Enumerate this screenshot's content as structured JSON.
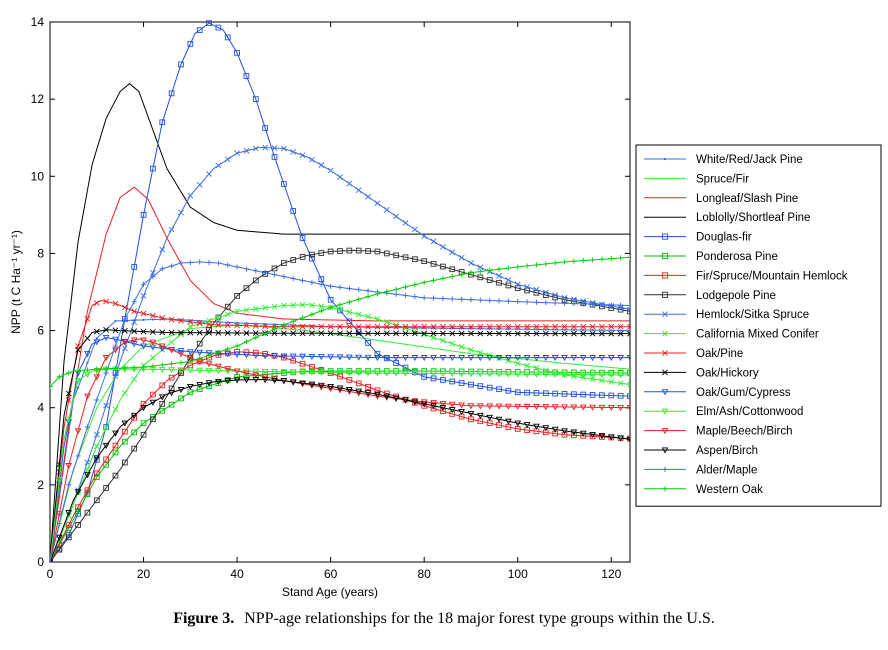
{
  "chart_data": {
    "type": "line",
    "xlabel": "Stand Age (years)",
    "ylabel": "NPP (t C Ha⁻¹ yr⁻¹)",
    "xlim": [
      0,
      124
    ],
    "ylim": [
      0,
      14
    ],
    "xticks": [
      "0",
      "20",
      "40",
      "60",
      "80",
      "100",
      "120"
    ],
    "yticks": [
      "0",
      "2",
      "4",
      "6",
      "8",
      "10",
      "12",
      "14"
    ],
    "grid": false,
    "legend_position": "right",
    "series": [
      {
        "name": "White/Red/Jack Pine",
        "color": "#3a6fe0",
        "marker": "dot",
        "points": [
          [
            0,
            0
          ],
          [
            5,
            4.2
          ],
          [
            10,
            5.8
          ],
          [
            14,
            6.25
          ],
          [
            25,
            6.3
          ],
          [
            40,
            6.2
          ],
          [
            60,
            6.1
          ],
          [
            90,
            6.05
          ],
          [
            124,
            6.0
          ]
        ]
      },
      {
        "name": "Spruce/Fir",
        "color": "#33ee33",
        "marker": "none",
        "points": [
          [
            0,
            0
          ],
          [
            5,
            2.4
          ],
          [
            10,
            4.0
          ],
          [
            15,
            5.0
          ],
          [
            20,
            5.6
          ],
          [
            30,
            6.05
          ],
          [
            40,
            6.15
          ],
          [
            55,
            6.0
          ],
          [
            70,
            5.75
          ],
          [
            90,
            5.4
          ],
          [
            110,
            5.15
          ],
          [
            124,
            5.0
          ]
        ]
      },
      {
        "name": "Longleaf/Slash Pine",
        "color": "#e82020",
        "marker": "none",
        "points": [
          [
            0,
            0
          ],
          [
            4,
            3.5
          ],
          [
            8,
            6.5
          ],
          [
            12,
            8.5
          ],
          [
            15,
            9.45
          ],
          [
            18,
            9.72
          ],
          [
            21,
            9.4
          ],
          [
            25,
            8.4
          ],
          [
            30,
            7.3
          ],
          [
            35,
            6.7
          ],
          [
            40,
            6.45
          ],
          [
            50,
            6.3
          ],
          [
            70,
            6.25
          ],
          [
            124,
            6.25
          ]
        ]
      },
      {
        "name": "Loblolly/Shortleaf Pine",
        "color": "#000000",
        "marker": "none",
        "points": [
          [
            0,
            0
          ],
          [
            3,
            5.2
          ],
          [
            6,
            8.3
          ],
          [
            9,
            10.3
          ],
          [
            12,
            11.5
          ],
          [
            15,
            12.2
          ],
          [
            17,
            12.4
          ],
          [
            19,
            12.2
          ],
          [
            22,
            11.2
          ],
          [
            25,
            10.2
          ],
          [
            30,
            9.2
          ],
          [
            35,
            8.8
          ],
          [
            40,
            8.6
          ],
          [
            50,
            8.5
          ],
          [
            124,
            8.5
          ]
        ]
      },
      {
        "name": "Douglas-fir",
        "color": "#1e50e0",
        "marker": "square",
        "points": [
          [
            0,
            0
          ],
          [
            4,
            0.7
          ],
          [
            8,
            1.8
          ],
          [
            12,
            3.5
          ],
          [
            16,
            6.3
          ],
          [
            20,
            9.0
          ],
          [
            24,
            11.4
          ],
          [
            28,
            12.9
          ],
          [
            31,
            13.7
          ],
          [
            34,
            13.97
          ],
          [
            37,
            13.8
          ],
          [
            40,
            13.2
          ],
          [
            44,
            12.0
          ],
          [
            48,
            10.5
          ],
          [
            54,
            8.4
          ],
          [
            60,
            6.8
          ],
          [
            70,
            5.4
          ],
          [
            80,
            4.8
          ],
          [
            100,
            4.4
          ],
          [
            124,
            4.3
          ]
        ]
      },
      {
        "name": "Ponderosa Pine",
        "color": "#00c000",
        "marker": "square",
        "points": [
          [
            0,
            0
          ],
          [
            5,
            1.1
          ],
          [
            10,
            2.2
          ],
          [
            15,
            3.0
          ],
          [
            20,
            3.6
          ],
          [
            30,
            4.4
          ],
          [
            40,
            4.8
          ],
          [
            55,
            4.95
          ],
          [
            80,
            4.95
          ],
          [
            124,
            4.9
          ]
        ]
      },
      {
        "name": "Fir/Spruce/Mountain Hemlock",
        "color": "#e82020",
        "marker": "square",
        "points": [
          [
            0,
            0
          ],
          [
            5,
            1.2
          ],
          [
            10,
            2.3
          ],
          [
            15,
            3.2
          ],
          [
            20,
            4.1
          ],
          [
            25,
            4.7
          ],
          [
            30,
            5.1
          ],
          [
            35,
            5.35
          ],
          [
            40,
            5.45
          ],
          [
            45,
            5.42
          ],
          [
            50,
            5.3
          ],
          [
            60,
            4.9
          ],
          [
            70,
            4.45
          ],
          [
            80,
            4.05
          ],
          [
            90,
            3.7
          ],
          [
            100,
            3.45
          ],
          [
            110,
            3.3
          ],
          [
            124,
            3.2
          ]
        ]
      },
      {
        "name": "Lodgepole Pine",
        "color": "#303030",
        "marker": "square",
        "points": [
          [
            0,
            0
          ],
          [
            5,
            0.8
          ],
          [
            10,
            1.6
          ],
          [
            15,
            2.4
          ],
          [
            20,
            3.3
          ],
          [
            25,
            4.3
          ],
          [
            30,
            5.3
          ],
          [
            35,
            6.2
          ],
          [
            40,
            6.9
          ],
          [
            45,
            7.4
          ],
          [
            50,
            7.75
          ],
          [
            55,
            7.95
          ],
          [
            60,
            8.05
          ],
          [
            65,
            8.08
          ],
          [
            70,
            8.05
          ],
          [
            80,
            7.8
          ],
          [
            90,
            7.45
          ],
          [
            100,
            7.1
          ],
          [
            110,
            6.8
          ],
          [
            124,
            6.5
          ]
        ]
      },
      {
        "name": "Hemlock/Sitka Spruce",
        "color": "#3a6fe0",
        "marker": "x",
        "points": [
          [
            0,
            0
          ],
          [
            5,
            1.5
          ],
          [
            10,
            3.3
          ],
          [
            15,
            5.2
          ],
          [
            20,
            6.9
          ],
          [
            25,
            8.4
          ],
          [
            30,
            9.5
          ],
          [
            35,
            10.2
          ],
          [
            40,
            10.6
          ],
          [
            45,
            10.75
          ],
          [
            50,
            10.72
          ],
          [
            55,
            10.5
          ],
          [
            60,
            10.15
          ],
          [
            70,
            9.3
          ],
          [
            80,
            8.45
          ],
          [
            90,
            7.75
          ],
          [
            100,
            7.2
          ],
          [
            110,
            6.85
          ],
          [
            124,
            6.55
          ]
        ]
      },
      {
        "name": "California Mixed Conifer",
        "color": "#33ee33",
        "marker": "x",
        "points": [
          [
            0,
            0
          ],
          [
            5,
            1.5
          ],
          [
            10,
            3.0
          ],
          [
            15,
            4.2
          ],
          [
            20,
            5.1
          ],
          [
            30,
            6.1
          ],
          [
            40,
            6.5
          ],
          [
            50,
            6.65
          ],
          [
            55,
            6.67
          ],
          [
            60,
            6.6
          ],
          [
            70,
            6.3
          ],
          [
            80,
            5.9
          ],
          [
            90,
            5.5
          ],
          [
            100,
            5.15
          ],
          [
            110,
            4.85
          ],
          [
            124,
            4.6
          ]
        ]
      },
      {
        "name": "Oak/Pine",
        "color": "#e82020",
        "marker": "x",
        "points": [
          [
            0,
            0
          ],
          [
            3,
            3.5
          ],
          [
            6,
            5.6
          ],
          [
            9,
            6.65
          ],
          [
            11,
            6.78
          ],
          [
            14,
            6.7
          ],
          [
            18,
            6.5
          ],
          [
            25,
            6.3
          ],
          [
            35,
            6.15
          ],
          [
            50,
            6.1
          ],
          [
            124,
            6.1
          ]
        ]
      },
      {
        "name": "Oak/Hickory",
        "color": "#000000",
        "marker": "x",
        "points": [
          [
            0,
            0
          ],
          [
            3,
            3.8
          ],
          [
            6,
            5.5
          ],
          [
            9,
            5.95
          ],
          [
            12,
            6.02
          ],
          [
            15,
            6.0
          ],
          [
            25,
            5.95
          ],
          [
            50,
            5.93
          ],
          [
            124,
            5.92
          ]
        ]
      },
      {
        "name": "Oak/Gum/Cypress",
        "color": "#1e50e0",
        "marker": "tri-down",
        "points": [
          [
            0,
            0
          ],
          [
            3,
            3.0
          ],
          [
            6,
            4.9
          ],
          [
            9,
            5.65
          ],
          [
            12,
            5.82
          ],
          [
            15,
            5.75
          ],
          [
            20,
            5.6
          ],
          [
            30,
            5.45
          ],
          [
            45,
            5.35
          ],
          [
            70,
            5.3
          ],
          [
            124,
            5.3
          ]
        ]
      },
      {
        "name": "Elm/Ash/Cottonwood",
        "color": "#33ee33",
        "marker": "tri-down",
        "points": [
          [
            0,
            0
          ],
          [
            3,
            3.2
          ],
          [
            6,
            4.7
          ],
          [
            9,
            4.95
          ],
          [
            12,
            5.0
          ],
          [
            20,
            5.0
          ],
          [
            40,
            4.95
          ],
          [
            70,
            4.9
          ],
          [
            124,
            4.85
          ]
        ]
      },
      {
        "name": "Maple/Beech/Birch",
        "color": "#e82020",
        "marker": "tri-down",
        "points": [
          [
            0,
            0
          ],
          [
            4,
            2.5
          ],
          [
            8,
            4.3
          ],
          [
            12,
            5.3
          ],
          [
            16,
            5.7
          ],
          [
            19,
            5.78
          ],
          [
            22,
            5.7
          ],
          [
            27,
            5.45
          ],
          [
            32,
            5.2
          ],
          [
            40,
            4.95
          ],
          [
            50,
            4.7
          ],
          [
            60,
            4.5
          ],
          [
            70,
            4.3
          ],
          [
            80,
            4.15
          ],
          [
            90,
            4.05
          ],
          [
            124,
            4.0
          ]
        ]
      },
      {
        "name": "Aspen/Birch",
        "color": "#000000",
        "marker": "tri-down",
        "points": [
          [
            0,
            0
          ],
          [
            5,
            1.6
          ],
          [
            10,
            2.7
          ],
          [
            15,
            3.5
          ],
          [
            20,
            4.0
          ],
          [
            25,
            4.35
          ],
          [
            30,
            4.55
          ],
          [
            35,
            4.67
          ],
          [
            40,
            4.72
          ],
          [
            45,
            4.73
          ],
          [
            50,
            4.7
          ],
          [
            60,
            4.55
          ],
          [
            70,
            4.35
          ],
          [
            80,
            4.1
          ],
          [
            90,
            3.85
          ],
          [
            100,
            3.6
          ],
          [
            110,
            3.4
          ],
          [
            124,
            3.18
          ]
        ]
      },
      {
        "name": "Alder/Maple",
        "color": "#3a6fe0",
        "marker": "plus",
        "points": [
          [
            0,
            0
          ],
          [
            4,
            2.0
          ],
          [
            8,
            3.5
          ],
          [
            12,
            4.9
          ],
          [
            16,
            6.3
          ],
          [
            20,
            7.2
          ],
          [
            24,
            7.6
          ],
          [
            28,
            7.75
          ],
          [
            32,
            7.78
          ],
          [
            36,
            7.75
          ],
          [
            40,
            7.65
          ],
          [
            50,
            7.4
          ],
          [
            60,
            7.15
          ],
          [
            70,
            7.0
          ],
          [
            80,
            6.85
          ],
          [
            100,
            6.75
          ],
          [
            124,
            6.65
          ]
        ]
      },
      {
        "name": "Western Oak",
        "color": "#00d000",
        "marker": "plus",
        "points": [
          [
            0,
            4.55
          ],
          [
            2,
            4.8
          ],
          [
            5,
            4.95
          ],
          [
            10,
            5.0
          ],
          [
            20,
            5.05
          ],
          [
            30,
            5.2
          ],
          [
            40,
            5.6
          ],
          [
            50,
            6.15
          ],
          [
            60,
            6.6
          ],
          [
            70,
            6.95
          ],
          [
            80,
            7.25
          ],
          [
            90,
            7.5
          ],
          [
            100,
            7.65
          ],
          [
            110,
            7.78
          ],
          [
            124,
            7.9
          ]
        ]
      }
    ]
  },
  "caption": {
    "figure_number": "Figure 3.",
    "text": "NPP-age relationships for the 18 major forest type groups within the U.S."
  }
}
